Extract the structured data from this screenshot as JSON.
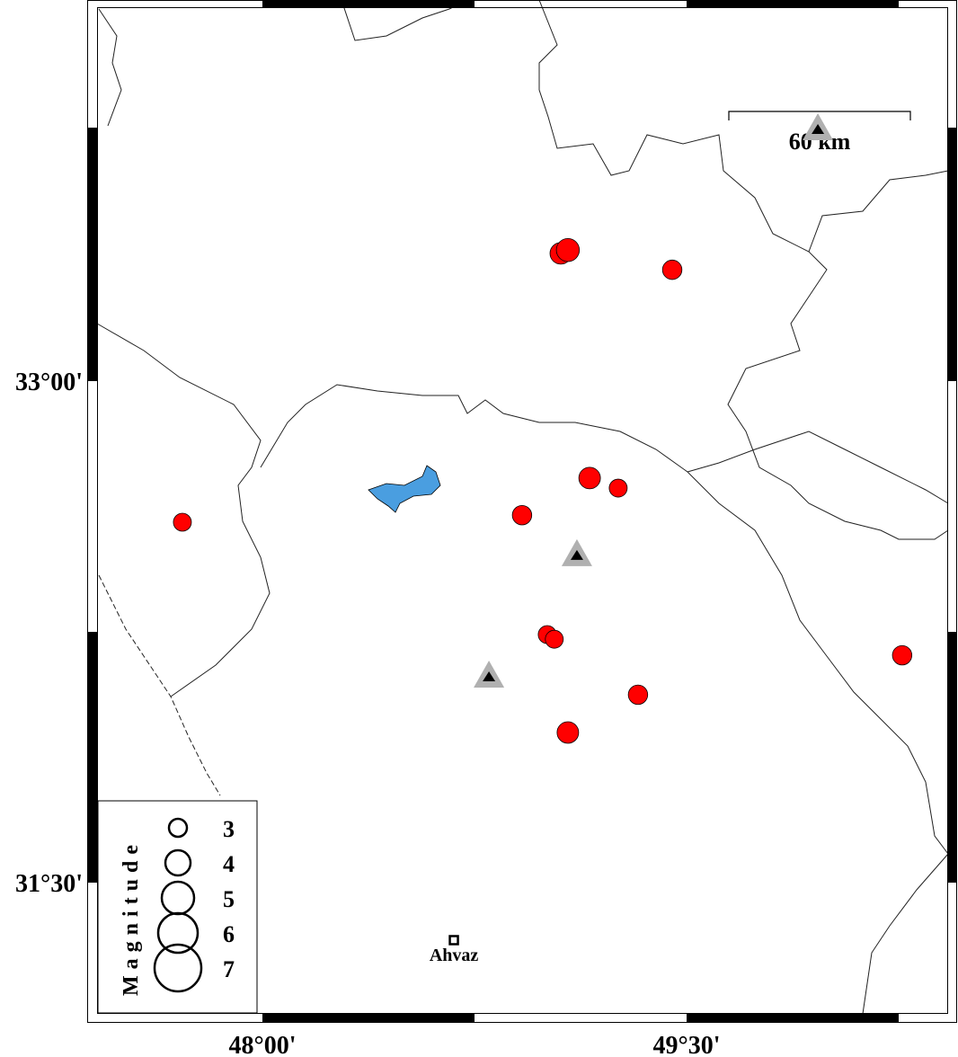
{
  "map": {
    "axes": {
      "lon_ticks": [
        {
          "value": 48.0,
          "label": "48°00'"
        },
        {
          "value": 49.5,
          "label": "49°30'"
        }
      ],
      "lat_ticks": [
        {
          "value": 33.0,
          "label": "33°00'"
        },
        {
          "value": 31.5,
          "label": "31°30'"
        }
      ]
    },
    "scale_bar": {
      "label": "60 km"
    },
    "events": [
      {
        "lon": 49.055,
        "lat": 33.382,
        "mag": 3.5
      },
      {
        "lon": 49.08,
        "lat": 33.392,
        "mag": 3.7
      },
      {
        "lon": 49.449,
        "lat": 33.333,
        "mag": 3.2
      },
      {
        "lon": 47.717,
        "lat": 32.578,
        "mag": 3.0
      },
      {
        "lon": 49.157,
        "lat": 32.71,
        "mag": 3.5
      },
      {
        "lon": 49.258,
        "lat": 32.68,
        "mag": 3.0
      },
      {
        "lon": 48.918,
        "lat": 32.599,
        "mag": 3.2
      },
      {
        "lon": 49.007,
        "lat": 32.242,
        "mag": 3.0
      },
      {
        "lon": 49.032,
        "lat": 32.228,
        "mag": 3.0
      },
      {
        "lon": 49.328,
        "lat": 32.062,
        "mag": 3.2
      },
      {
        "lon": 49.08,
        "lat": 31.949,
        "mag": 3.5
      },
      {
        "lon": 50.262,
        "lat": 32.18,
        "mag": 3.2
      }
    ],
    "stations": [
      {
        "lon": 49.964,
        "lat": 33.75
      },
      {
        "lon": 49.112,
        "lat": 32.476
      },
      {
        "lon": 48.801,
        "lat": 32.113
      }
    ],
    "city": {
      "name": "Ahvaz",
      "lon": 48.677,
      "lat": 31.328
    },
    "legend": {
      "title": "Magnitude",
      "items": [
        {
          "label": "3",
          "mag": 3
        },
        {
          "label": "4",
          "mag": 4
        },
        {
          "label": "5",
          "mag": 5
        },
        {
          "label": "6",
          "mag": 6
        },
        {
          "label": "7",
          "mag": 7
        }
      ]
    },
    "colors": {
      "event": "#ff0000",
      "station_outer": "#b0b0b0",
      "station_inner": "#000000",
      "lake": "#4a9ee0"
    }
  }
}
